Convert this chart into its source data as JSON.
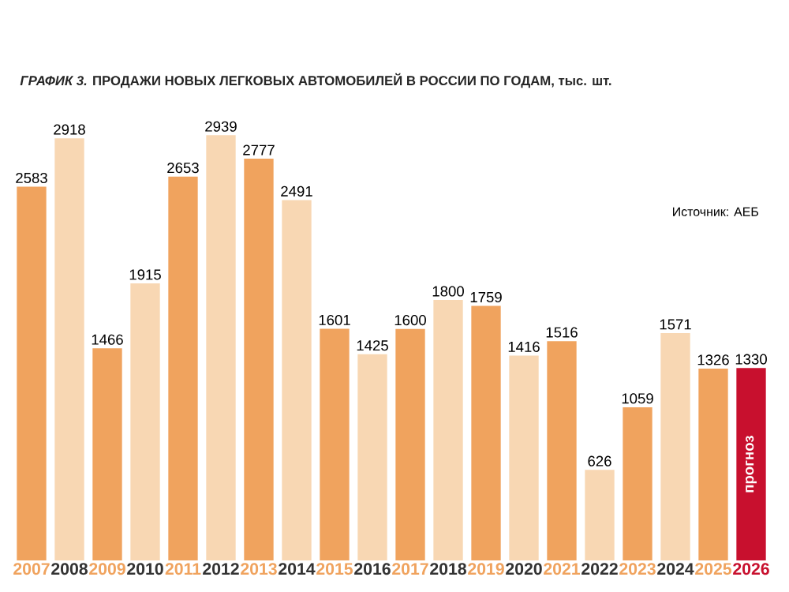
{
  "chart_data": {
    "type": "bar",
    "title": "*ГРАФИК 3.* ПРОДАЖИ НОВЫХ ЛЕГКОВЫХ АВТОМОБИЛЕЙ В РОССИИ ПО ГОДАМ, тыс. шт.",
    "categories": [
      "2007",
      "2008",
      "2009",
      "2010",
      "2011",
      "2012",
      "2013",
      "2014",
      "2015",
      "2016",
      "2017",
      "2018",
      "2019",
      "2020",
      "2021",
      "2022",
      "2023",
      "2024",
      "2025",
      "2026"
    ],
    "values": [
      2583,
      2918,
      1466,
      1915,
      2653,
      2939,
      2777,
      2491,
      1601,
      1425,
      1600,
      1800,
      1759,
      1416,
      1516,
      626,
      1059,
      1571,
      1326,
      1330
    ],
    "colors": [
      "#f0a35e",
      "#f8d7b3",
      "#f0a35e",
      "#f8d7b3",
      "#f0a35e",
      "#f8d7b3",
      "#f0a35e",
      "#f8d7b3",
      "#f0a35e",
      "#f8d7b3",
      "#f0a35e",
      "#f8d7b3",
      "#f0a35e",
      "#f8d7b3",
      "#f0a35e",
      "#f8d7b3",
      "#f0a35e",
      "#f8d7b3",
      "#f0a35e",
      "#c8102e"
    ],
    "data_labels": true,
    "annotations": [
      "Источник: АЕБ",
      "прогноз"
    ]
  }
}
